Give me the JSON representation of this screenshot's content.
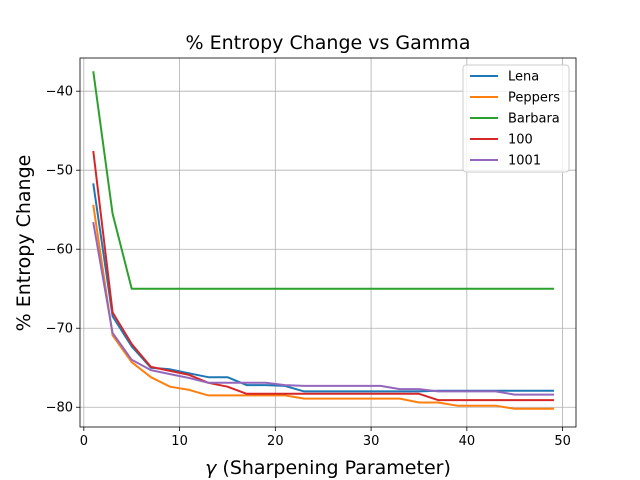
{
  "chart_data": {
    "type": "line",
    "title": "% Entropy Change vs Gamma",
    "xlabel_symbol": "γ",
    "xlabel": " (Sharpening Parameter)",
    "ylabel": "% Entropy Change",
    "xlim": [
      -0.4,
      51.4
    ],
    "ylim": [
      -82.5,
      -35.8
    ],
    "xticks": [
      0,
      10,
      20,
      30,
      40,
      50
    ],
    "yticks": [
      -40,
      -50,
      -60,
      -70,
      -80
    ],
    "ytick_labels": [
      "−40",
      "−50",
      "−60",
      "−70",
      "−80"
    ],
    "grid": true,
    "legend_position": "upper right",
    "x": [
      1,
      3,
      5,
      7,
      9,
      11,
      13,
      15,
      17,
      19,
      21,
      23,
      25,
      27,
      29,
      31,
      33,
      35,
      37,
      39,
      41,
      43,
      45,
      47,
      49
    ],
    "series": [
      {
        "name": "Lena",
        "color": "#1f77b4",
        "values": [
          -51.8,
          -68.5,
          -72.3,
          -75.0,
          -75.2,
          -75.7,
          -76.2,
          -76.2,
          -77.2,
          -77.2,
          -77.3,
          -78.0,
          -78.0,
          -78.0,
          -78.0,
          -78.0,
          -78.0,
          -78.0,
          -77.9,
          -77.9,
          -77.9,
          -77.9,
          -77.9,
          -77.9,
          -77.9
        ]
      },
      {
        "name": "Peppers",
        "color": "#ff7f0e",
        "values": [
          -54.5,
          -70.9,
          -74.3,
          -76.2,
          -77.4,
          -77.8,
          -78.5,
          -78.5,
          -78.5,
          -78.5,
          -78.5,
          -78.9,
          -78.9,
          -78.9,
          -78.9,
          -78.9,
          -78.9,
          -79.4,
          -79.4,
          -79.8,
          -79.8,
          -79.8,
          -80.2,
          -80.2,
          -80.2
        ]
      },
      {
        "name": "Barbara",
        "color": "#2ca02c",
        "values": [
          -37.6,
          -55.5,
          -65.0,
          -65.0,
          -65.0,
          -65.0,
          -65.0,
          -65.0,
          -65.0,
          -65.0,
          -65.0,
          -65.0,
          -65.0,
          -65.0,
          -65.0,
          -65.0,
          -65.0,
          -65.0,
          -65.0,
          -65.0,
          -65.0,
          -65.0,
          -65.0,
          -65.0,
          -65.0
        ]
      },
      {
        "name": "100",
        "color": "#d62728",
        "values": [
          -47.7,
          -68.0,
          -72.0,
          -74.9,
          -75.4,
          -75.9,
          -76.9,
          -77.4,
          -78.3,
          -78.3,
          -78.3,
          -78.3,
          -78.3,
          -78.3,
          -78.3,
          -78.3,
          -78.3,
          -78.3,
          -79.1,
          -79.1,
          -79.1,
          -79.1,
          -79.1,
          -79.1,
          -79.1
        ]
      },
      {
        "name": "1001",
        "color": "#9467bd",
        "values": [
          -56.7,
          -70.6,
          -74.0,
          -75.3,
          -75.8,
          -76.3,
          -76.9,
          -76.9,
          -76.9,
          -76.9,
          -77.2,
          -77.3,
          -77.3,
          -77.3,
          -77.3,
          -77.3,
          -77.7,
          -77.7,
          -78.0,
          -78.0,
          -78.0,
          -78.0,
          -78.4,
          -78.4,
          -78.4
        ]
      }
    ]
  }
}
